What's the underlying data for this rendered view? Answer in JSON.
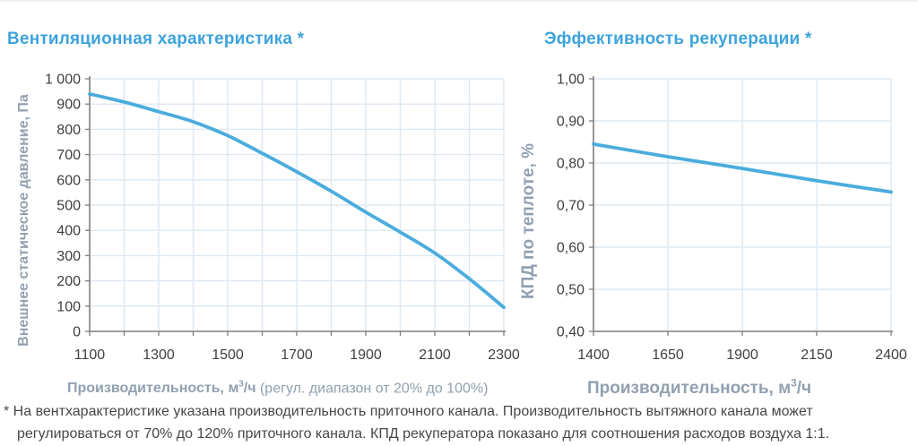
{
  "colors": {
    "title": "#3ea3dc",
    "curve": "#4aacdc",
    "grid": "#dde8f2",
    "axis": "#7f7f7f",
    "tick_label": "#3f3f3f",
    "axis_title": "#91a0b0",
    "footnote": "#474747"
  },
  "chart_data": [
    {
      "type": "line",
      "title": "Вентиляционная характеристика *",
      "ylabel": "Внешнее статическое давление, Па",
      "xlabel_bold": "Производительность, м",
      "xlabel_sup": "3",
      "xlabel_bold_end": "/ч",
      "xlabel_rest": " (регул. диапазон от 20% до 100%)",
      "x": [
        1100,
        1200,
        1300,
        1400,
        1500,
        1600,
        1700,
        1800,
        1900,
        2000,
        2100,
        2200,
        2300
      ],
      "values": [
        940,
        908,
        870,
        830,
        775,
        705,
        632,
        555,
        472,
        393,
        310,
        208,
        95
      ],
      "xlim": [
        1100,
        2300
      ],
      "ylim": [
        0,
        1000
      ],
      "x_grid_step": 100,
      "x_tick_values": [
        1100,
        1300,
        1500,
        1700,
        1900,
        2100,
        2300
      ],
      "x_tick_labels": [
        "1100",
        "1300",
        "1500",
        "1700",
        "1900",
        "2100",
        "2300"
      ],
      "y_tick_values": [
        0,
        100,
        200,
        300,
        400,
        500,
        600,
        700,
        800,
        900,
        1000
      ],
      "y_tick_labels": [
        "0",
        "100",
        "200",
        "300",
        "400",
        "500",
        "600",
        "700",
        "800",
        "900",
        "1 000"
      ],
      "grid": "on",
      "legend": "none"
    },
    {
      "type": "line",
      "title": "Эффективность рекуперации *",
      "ylabel": "КПД по теплоте, %",
      "xlabel_bold": "Производительность, м",
      "xlabel_sup": "3",
      "xlabel_bold_end": "/ч",
      "xlabel_rest": "",
      "x": [
        1400,
        1650,
        1900,
        2150,
        2400
      ],
      "values": [
        0.845,
        0.815,
        0.787,
        0.758,
        0.731
      ],
      "xlim": [
        1400,
        2400
      ],
      "ylim": [
        0.4,
        1.0
      ],
      "x_grid_step": 250,
      "x_tick_values": [
        1400,
        1650,
        1900,
        2150,
        2400
      ],
      "x_tick_labels": [
        "1400",
        "1650",
        "1900",
        "2150",
        "2400"
      ],
      "y_tick_values": [
        0.4,
        0.5,
        0.6,
        0.7,
        0.8,
        0.9,
        1.0
      ],
      "y_tick_labels": [
        "0,40",
        "0,50",
        "0,60",
        "0,70",
        "0,80",
        "0,90",
        "1,00"
      ],
      "grid": "on",
      "legend": "none"
    }
  ],
  "footnote": {
    "lines": [
      "* На вентхарактеристике указана производительность приточного канала. Производительность вытяжного канала может",
      "регулироваться от 70% до 120% приточного канала. КПД рекуператора показано для соотношения расходов воздуха 1:1."
    ]
  }
}
